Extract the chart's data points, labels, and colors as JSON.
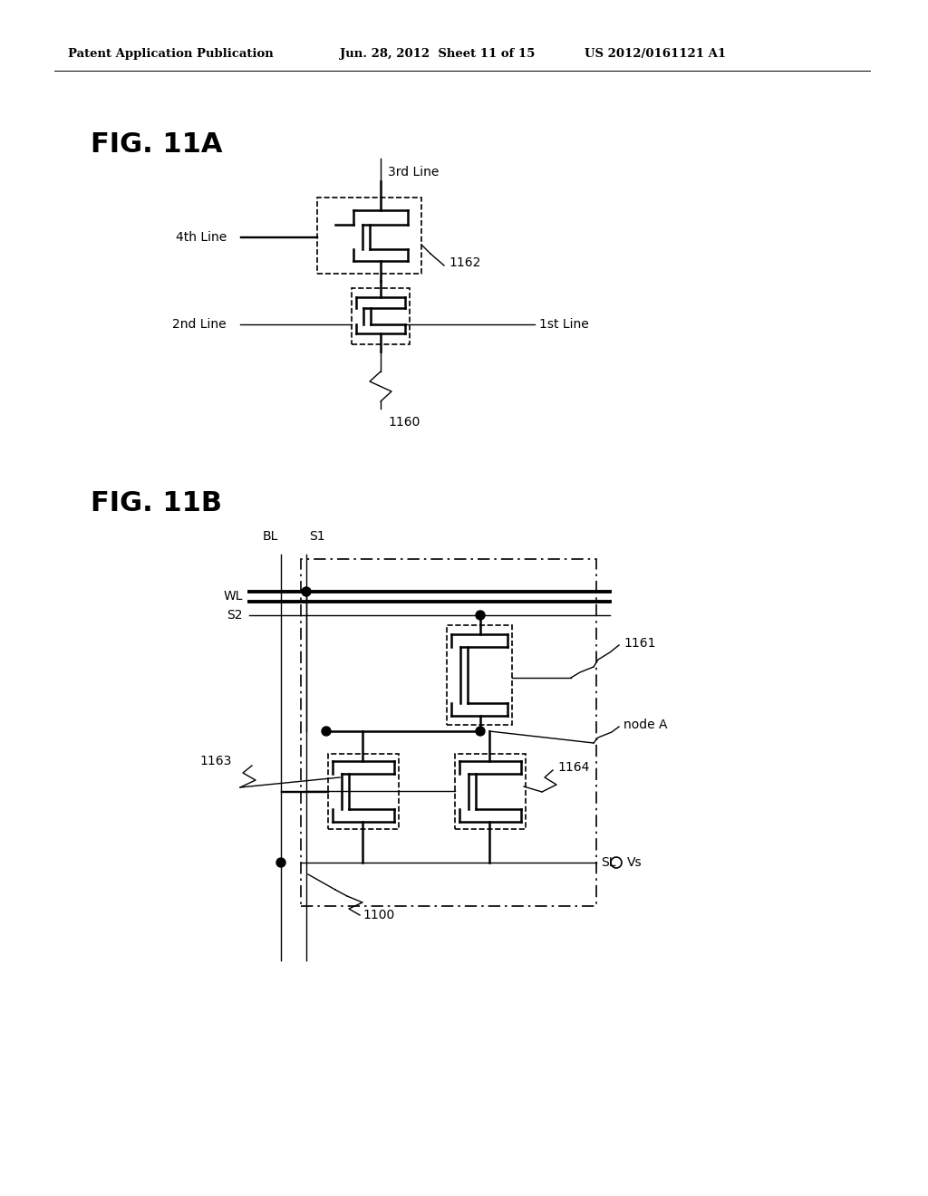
{
  "bg_color": "#ffffff",
  "header_left": "Patent Application Publication",
  "header_mid": "Jun. 28, 2012  Sheet 11 of 15",
  "header_right": "US 2012/0161121 A1",
  "fig11a_label": "FIG. 11A",
  "fig11b_label": "FIG. 11B",
  "label_1160": "1160",
  "label_1162": "1162",
  "label_1161": "1161",
  "label_1163": "1163",
  "label_1164": "1164",
  "label_1100": "1100",
  "label_node_a": "node A",
  "label_BL": "BL",
  "label_S1": "S1",
  "label_WL": "WL",
  "label_S2": "S2",
  "label_SL": "SL",
  "label_Vs": "Vs",
  "label_3rd": "3rd Line",
  "label_4th": "4th Line",
  "label_2nd": "2nd Line",
  "label_1st": "1st Line"
}
